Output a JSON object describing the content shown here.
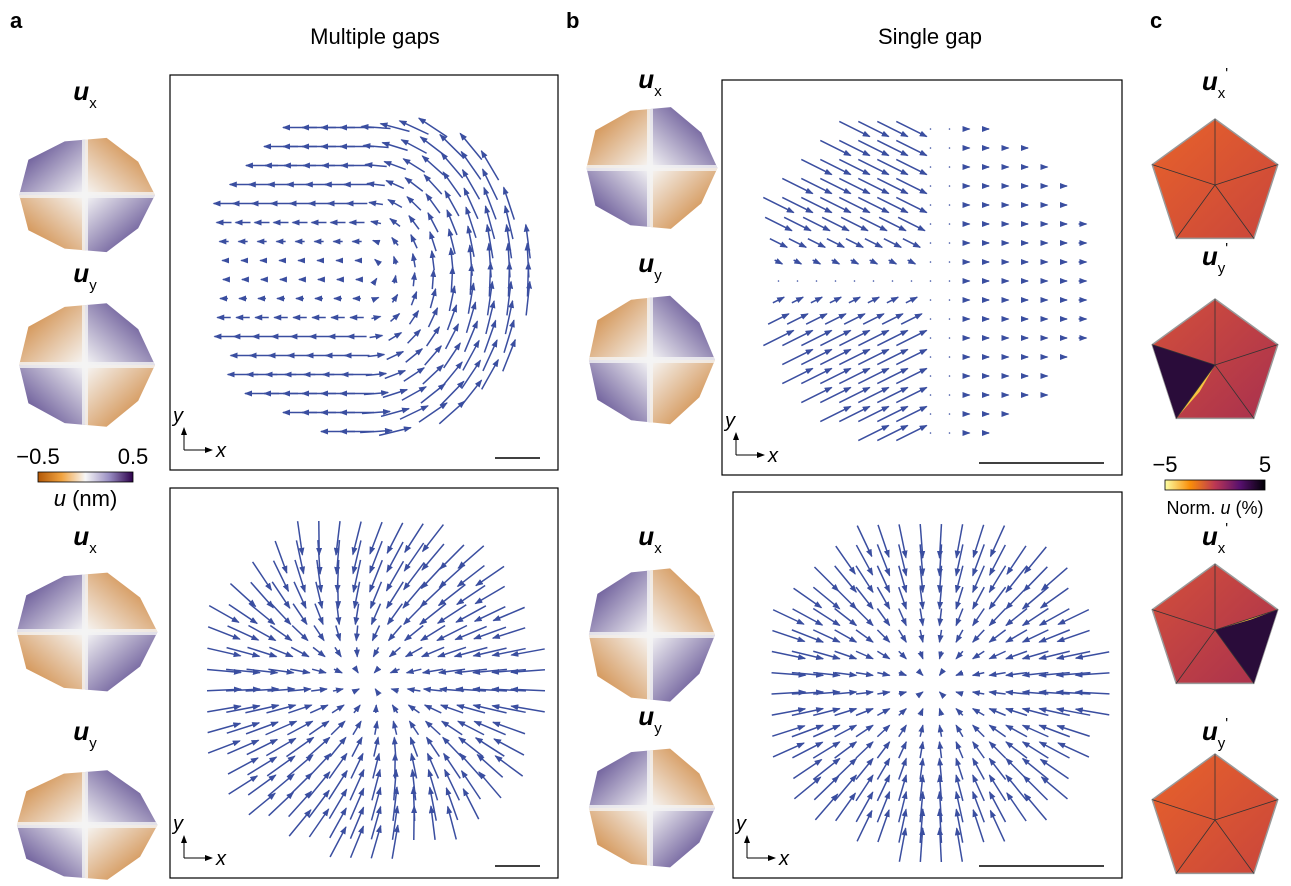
{
  "panels": {
    "a": {
      "label": "a",
      "title": "Multiple gaps",
      "maps": [
        {
          "symbol": "u",
          "subscript": "x"
        },
        {
          "symbol": "u",
          "subscript": "y"
        },
        {
          "symbol": "u",
          "subscript": "x"
        },
        {
          "symbol": "u",
          "subscript": "y"
        }
      ],
      "colorbar": {
        "min_label": "−0.5",
        "max_label": "0.5",
        "symbol": "u",
        "unit": "(nm)"
      }
    },
    "b": {
      "label": "b",
      "title": "Single gap",
      "maps": [
        {
          "symbol": "u",
          "subscript": "x"
        },
        {
          "symbol": "u",
          "subscript": "y"
        },
        {
          "symbol": "u",
          "subscript": "x"
        },
        {
          "symbol": "u",
          "subscript": "y"
        }
      ]
    },
    "c": {
      "label": "c",
      "maps": [
        {
          "symbol": "u",
          "subscript": "x",
          "prime": "'"
        },
        {
          "symbol": "u",
          "subscript": "y",
          "prime": "'"
        },
        {
          "symbol": "u",
          "subscript": "x",
          "prime": "'"
        },
        {
          "symbol": "u",
          "subscript": "y",
          "prime": "'"
        }
      ],
      "colorbar": {
        "min_label": "−5",
        "max_label": "5",
        "prefix": "Norm.",
        "symbol": "u",
        "unit": "(%)"
      }
    }
  },
  "axis_labels": {
    "x": "x",
    "y": "y"
  }
}
